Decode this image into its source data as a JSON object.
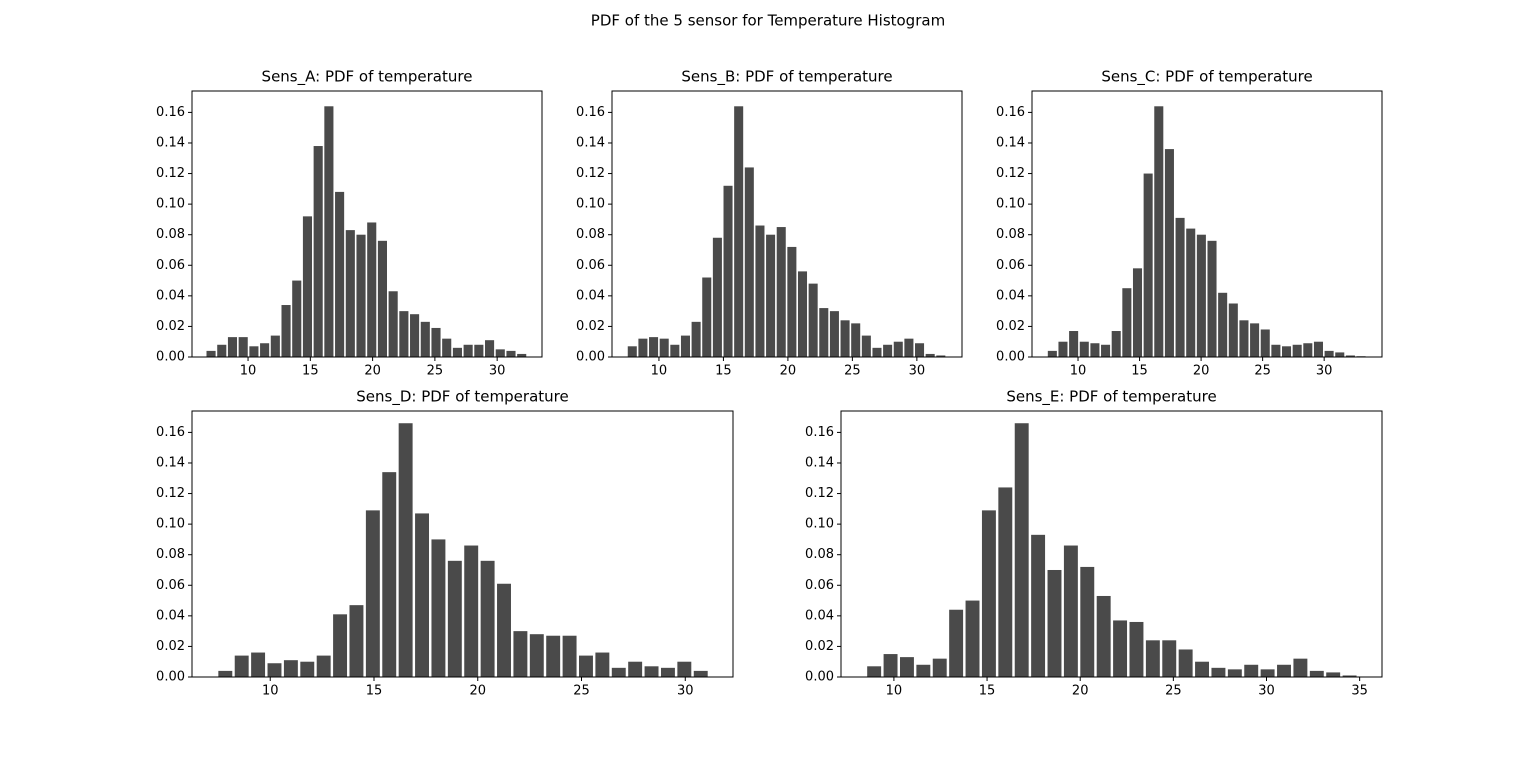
{
  "title": "PDF of the 5 sensor for Temperature Histogram",
  "chart_data": [
    {
      "type": "histogram",
      "title": "Sens_A: PDF of temperature",
      "color": "#4a4a4a",
      "bins": [
        6.6,
        7.46,
        8.32,
        9.18,
        10.04,
        10.9,
        11.76,
        12.62,
        13.48,
        14.34,
        15.2,
        16.06,
        16.92,
        17.78,
        18.64,
        19.5,
        20.36,
        21.22,
        22.08,
        22.94,
        23.8,
        24.66,
        25.52,
        26.38,
        27.24,
        28.1,
        28.96,
        29.82,
        30.68,
        31.54,
        32.4
      ],
      "values": [
        0.004,
        0.008,
        0.013,
        0.013,
        0.007,
        0.009,
        0.014,
        0.034,
        0.05,
        0.092,
        0.138,
        0.164,
        0.108,
        0.083,
        0.08,
        0.088,
        0.076,
        0.043,
        0.03,
        0.028,
        0.023,
        0.019,
        0.012,
        0.006,
        0.008,
        0.008,
        0.011,
        0.005,
        0.004,
        0.002
      ],
      "xlim": [
        5.5,
        33.6
      ],
      "xticks": [
        10,
        15,
        20,
        25,
        30
      ],
      "ylim": [
        0,
        0.174
      ],
      "yticks": [
        {
          "value": 0,
          "label": "0.00"
        },
        {
          "value": 0.02,
          "label": "0.02"
        },
        {
          "value": 0.04,
          "label": "0.04"
        },
        {
          "value": 0.06,
          "label": "0.06"
        },
        {
          "value": 0.08,
          "label": "0.08"
        },
        {
          "value": 0.1,
          "label": "0.10"
        },
        {
          "value": 0.12,
          "label": "0.12"
        },
        {
          "value": 0.14,
          "label": "0.14"
        },
        {
          "value": 0.16,
          "label": "0.16"
        }
      ]
    },
    {
      "type": "histogram",
      "title": "Sens_B: PDF of temperature",
      "color": "#4a4a4a",
      "bins": [
        7.52,
        8.345,
        9.17,
        9.995,
        10.82,
        11.645,
        12.47,
        13.295,
        14.12,
        14.945,
        15.77,
        16.595,
        17.42,
        18.245,
        19.07,
        19.895,
        20.72,
        21.545,
        22.37,
        23.195,
        24.02,
        24.845,
        25.67,
        26.495,
        27.32,
        28.145,
        28.97,
        29.795,
        30.62,
        31.445,
        32.27
      ],
      "values": [
        0.007,
        0.012,
        0.013,
        0.012,
        0.008,
        0.014,
        0.023,
        0.052,
        0.078,
        0.112,
        0.164,
        0.124,
        0.086,
        0.08,
        0.085,
        0.072,
        0.056,
        0.048,
        0.032,
        0.03,
        0.024,
        0.022,
        0.014,
        0.006,
        0.008,
        0.01,
        0.012,
        0.009,
        0.002,
        0.001
      ],
      "xlim": [
        6.36,
        33.5
      ],
      "xticks": [
        10,
        15,
        20,
        25,
        30
      ],
      "ylim": [
        0,
        0.174
      ],
      "yticks": [
        {
          "value": 0,
          "label": "0.00"
        },
        {
          "value": 0.02,
          "label": "0.02"
        },
        {
          "value": 0.04,
          "label": "0.04"
        },
        {
          "value": 0.06,
          "label": "0.06"
        },
        {
          "value": 0.08,
          "label": "0.08"
        },
        {
          "value": 0.1,
          "label": "0.10"
        },
        {
          "value": 0.12,
          "label": "0.12"
        },
        {
          "value": 0.14,
          "label": "0.14"
        },
        {
          "value": 0.16,
          "label": "0.16"
        }
      ]
    },
    {
      "type": "histogram",
      "title": "Sens_C: PDF of temperature",
      "color": "#4a4a4a",
      "bins": [
        7.48,
        8.345,
        9.21,
        10.075,
        10.94,
        11.805,
        12.67,
        13.535,
        14.4,
        15.265,
        16.13,
        16.995,
        17.86,
        18.725,
        19.59,
        20.455,
        21.32,
        22.185,
        23.05,
        23.915,
        24.78,
        25.645,
        26.51,
        27.375,
        28.24,
        29.105,
        29.97,
        30.835,
        31.7,
        32.565,
        33.43
      ],
      "values": [
        0.004,
        0.01,
        0.017,
        0.01,
        0.009,
        0.008,
        0.017,
        0.045,
        0.058,
        0.12,
        0.164,
        0.136,
        0.091,
        0.084,
        0.08,
        0.076,
        0.042,
        0.035,
        0.024,
        0.022,
        0.018,
        0.008,
        0.007,
        0.008,
        0.009,
        0.01,
        0.004,
        0.003,
        0.001,
        0.0005
      ],
      "xlim": [
        6.26,
        34.7
      ],
      "xticks": [
        10,
        15,
        20,
        25,
        30
      ],
      "ylim": [
        0,
        0.174
      ],
      "yticks": [
        {
          "value": 0,
          "label": "0.00"
        },
        {
          "value": 0.02,
          "label": "0.02"
        },
        {
          "value": 0.04,
          "label": "0.04"
        },
        {
          "value": 0.06,
          "label": "0.06"
        },
        {
          "value": 0.08,
          "label": "0.08"
        },
        {
          "value": 0.1,
          "label": "0.10"
        },
        {
          "value": 0.12,
          "label": "0.12"
        },
        {
          "value": 0.14,
          "label": "0.14"
        },
        {
          "value": 0.16,
          "label": "0.16"
        }
      ]
    },
    {
      "type": "histogram",
      "title": "Sens_D: PDF of temperature",
      "color": "#4a4a4a",
      "bins": [
        7.44,
        8.23,
        9.02,
        9.81,
        10.6,
        11.39,
        12.18,
        12.97,
        13.76,
        14.55,
        15.34,
        16.13,
        16.92,
        17.71,
        18.5,
        19.29,
        20.08,
        20.87,
        21.66,
        22.45,
        23.24,
        24.03,
        24.82,
        25.61,
        26.4,
        27.19,
        27.98,
        28.77,
        29.56,
        30.35,
        31.14
      ],
      "values": [
        0.004,
        0.014,
        0.016,
        0.009,
        0.011,
        0.01,
        0.014,
        0.041,
        0.047,
        0.109,
        0.134,
        0.166,
        0.107,
        0.09,
        0.076,
        0.086,
        0.076,
        0.061,
        0.03,
        0.028,
        0.027,
        0.027,
        0.014,
        0.016,
        0.006,
        0.01,
        0.007,
        0.006,
        0.01,
        0.004
      ],
      "xlim": [
        6.23,
        32.3
      ],
      "xticks": [
        10,
        15,
        20,
        25,
        30
      ],
      "ylim": [
        0,
        0.174
      ],
      "yticks": [
        {
          "value": 0,
          "label": "0.00"
        },
        {
          "value": 0.02,
          "label": "0.02"
        },
        {
          "value": 0.04,
          "label": "0.04"
        },
        {
          "value": 0.06,
          "label": "0.06"
        },
        {
          "value": 0.08,
          "label": "0.08"
        },
        {
          "value": 0.1,
          "label": "0.10"
        },
        {
          "value": 0.12,
          "label": "0.12"
        },
        {
          "value": 0.14,
          "label": "0.14"
        },
        {
          "value": 0.16,
          "label": "0.16"
        }
      ]
    },
    {
      "type": "histogram",
      "title": "Sens_E: PDF of temperature",
      "color": "#4a4a4a",
      "bins": [
        8.5,
        9.38,
        10.26,
        11.14,
        12.02,
        12.9,
        13.78,
        14.66,
        15.54,
        16.42,
        17.3,
        18.18,
        19.06,
        19.94,
        20.82,
        21.7,
        22.58,
        23.46,
        24.34,
        25.22,
        26.1,
        26.98,
        27.86,
        28.74,
        29.62,
        30.5,
        31.38,
        32.26,
        33.14,
        34.02,
        34.9
      ],
      "values": [
        0.007,
        0.015,
        0.013,
        0.008,
        0.012,
        0.044,
        0.05,
        0.109,
        0.124,
        0.166,
        0.093,
        0.07,
        0.086,
        0.072,
        0.053,
        0.037,
        0.036,
        0.024,
        0.024,
        0.018,
        0.01,
        0.006,
        0.005,
        0.008,
        0.005,
        0.008,
        0.012,
        0.004,
        0.003,
        0.001
      ],
      "xlim": [
        7.16,
        36.2
      ],
      "xticks": [
        10,
        15,
        20,
        25,
        30,
        35
      ],
      "ylim": [
        0,
        0.174
      ],
      "yticks": [
        {
          "value": 0,
          "label": "0.00"
        },
        {
          "value": 0.02,
          "label": "0.02"
        },
        {
          "value": 0.04,
          "label": "0.04"
        },
        {
          "value": 0.06,
          "label": "0.06"
        },
        {
          "value": 0.08,
          "label": "0.08"
        },
        {
          "value": 0.1,
          "label": "0.10"
        },
        {
          "value": 0.12,
          "label": "0.12"
        },
        {
          "value": 0.14,
          "label": "0.14"
        },
        {
          "value": 0.16,
          "label": "0.16"
        }
      ]
    }
  ]
}
